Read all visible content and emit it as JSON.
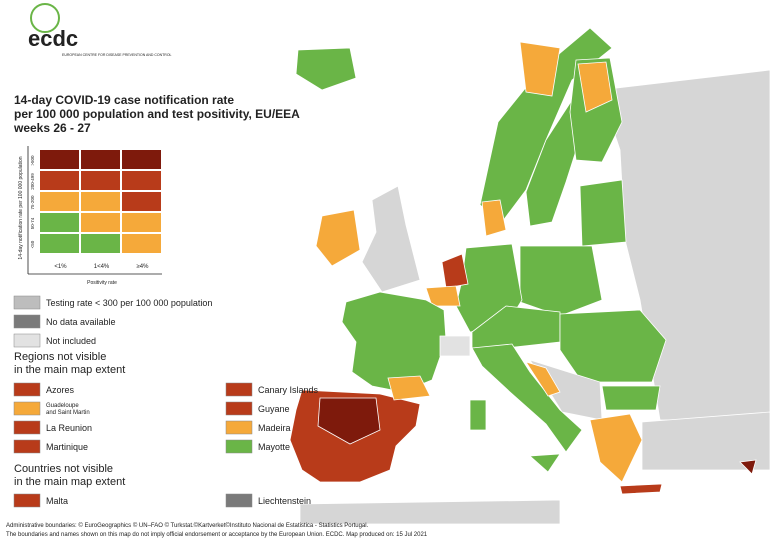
{
  "logo": {
    "name": "ecdc",
    "subtitle": "EUROPEAN CENTRE FOR DISEASE PREVENTION AND CONTROL"
  },
  "title": [
    "14-day COVID-19 case notification rate",
    "per 100 000 population and test positivity, EU/EEA",
    "weeks 26 - 27"
  ],
  "matrix": {
    "y_axis_label": "14-day notification rate per 100 000 population",
    "rows": [
      ">500",
      "200-499",
      "75-200",
      "50-74",
      "<50"
    ],
    "columns": [
      "<1%",
      "1<4%",
      "≥4%"
    ],
    "x_axis_label": "Positivity rate",
    "cells": [
      [
        "#7e1a0c",
        "#7e1a0c",
        "#7e1a0c"
      ],
      [
        "#b83b1a",
        "#b83b1a",
        "#b83b1a"
      ],
      [
        "#f5a93a",
        "#f5a93a",
        "#b83b1a"
      ],
      [
        "#6ab547",
        "#f5a93a",
        "#f5a93a"
      ],
      [
        "#6ab547",
        "#6ab547",
        "#f5a93a"
      ]
    ]
  },
  "legend": [
    {
      "label": "Testing rate < 300 per 100 000 population",
      "color": "#bdbdbd"
    },
    {
      "label": "No data available",
      "color": "#7a7a7a"
    },
    {
      "label": "Not included",
      "color": "#e2e2e2"
    }
  ],
  "regions": {
    "heading": [
      "Regions not visible",
      "in the main map extent"
    ],
    "items": [
      {
        "label": [
          "Azores"
        ],
        "color": "#b83b1a"
      },
      {
        "label": [
          "Canary Islands"
        ],
        "color": "#b83b1a"
      },
      {
        "label": [
          "Guadeloupe",
          "and Saint Martin"
        ],
        "color": "#f5a93a"
      },
      {
        "label": [
          "Guyane"
        ],
        "color": "#b83b1a"
      },
      {
        "label": [
          "La Reunion"
        ],
        "color": "#b83b1a"
      },
      {
        "label": [
          "Madeira"
        ],
        "color": "#f5a93a"
      },
      {
        "label": [
          "Martinique"
        ],
        "color": "#b83b1a"
      },
      {
        "label": [
          "Mayotte"
        ],
        "color": "#6ab547"
      }
    ]
  },
  "countries": {
    "heading": [
      "Countries not visible",
      "in the main map extent"
    ],
    "items": [
      {
        "label": [
          "Malta"
        ],
        "color": "#b83b1a"
      },
      {
        "label": [
          "Liechtenstein"
        ],
        "color": "#7a7a7a"
      }
    ]
  },
  "footer": [
    "Administrative boundaries: © EuroGeographics © UN–FAO © Turkstat.©Kartverket©Instituto Nacional de Estatistica - Statistics Portugal.",
    "The boundaries and names shown on this map do not imply official endorsement or acceptance by the European Union. ECDC. Map produced on: 15 Jul 2021"
  ]
}
